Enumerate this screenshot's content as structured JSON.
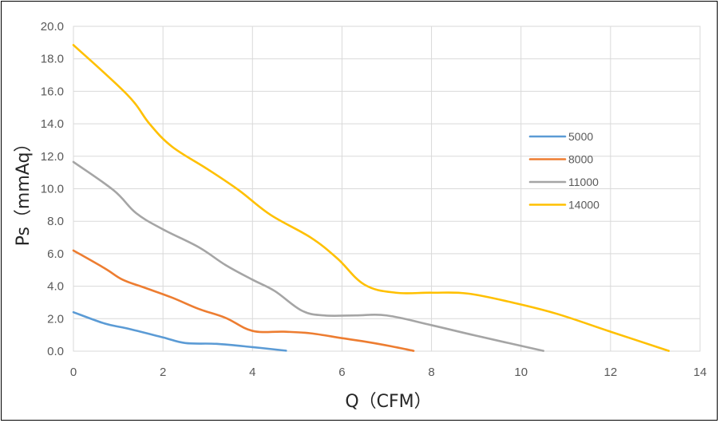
{
  "chart_data": {
    "type": "line",
    "title": "",
    "xlabel": "Q（CFM）",
    "ylabel": "Ps（mmAq）",
    "xlim": [
      0,
      14
    ],
    "ylim": [
      0,
      20
    ],
    "x_ticks": [
      "0",
      "2",
      "4",
      "6",
      "8",
      "10",
      "12",
      "14"
    ],
    "y_ticks": [
      "0.0",
      "2.0",
      "4.0",
      "6.0",
      "8.0",
      "10.0",
      "12.0",
      "14.0",
      "16.0",
      "18.0",
      "20.0"
    ],
    "grid": true,
    "legend_position": "right",
    "series": [
      {
        "name": "5000",
        "color": "#5b9bd5",
        "points": [
          [
            0,
            2.4
          ],
          [
            0.7,
            1.7
          ],
          [
            1.2,
            1.4
          ],
          [
            2,
            0.85
          ],
          [
            2.5,
            0.5
          ],
          [
            3.2,
            0.45
          ],
          [
            4,
            0.25
          ],
          [
            4.75,
            0.03
          ]
        ]
      },
      {
        "name": "8000",
        "color": "#ed7d31",
        "points": [
          [
            0,
            6.2
          ],
          [
            0.7,
            5.1
          ],
          [
            1.1,
            4.4
          ],
          [
            1.6,
            3.9
          ],
          [
            2.2,
            3.3
          ],
          [
            2.8,
            2.6
          ],
          [
            3.4,
            2.05
          ],
          [
            4,
            1.25
          ],
          [
            4.7,
            1.2
          ],
          [
            5.3,
            1.1
          ],
          [
            6,
            0.8
          ],
          [
            6.6,
            0.55
          ],
          [
            7.1,
            0.3
          ],
          [
            7.6,
            0.02
          ]
        ]
      },
      {
        "name": "11000",
        "color": "#a5a5a5",
        "points": [
          [
            0,
            11.65
          ],
          [
            0.9,
            9.9
          ],
          [
            1.4,
            8.5
          ],
          [
            2,
            7.5
          ],
          [
            2.8,
            6.4
          ],
          [
            3.4,
            5.3
          ],
          [
            4,
            4.4
          ],
          [
            4.5,
            3.7
          ],
          [
            5.1,
            2.5
          ],
          [
            5.6,
            2.2
          ],
          [
            6.3,
            2.2
          ],
          [
            7,
            2.2
          ],
          [
            8,
            1.6
          ],
          [
            9,
            0.95
          ],
          [
            10.5,
            0.02
          ]
        ]
      },
      {
        "name": "14000",
        "color": "#ffc000",
        "points": [
          [
            0,
            18.85
          ],
          [
            1.2,
            15.8
          ],
          [
            1.7,
            14.0
          ],
          [
            2.2,
            12.6
          ],
          [
            3,
            11.2
          ],
          [
            3.7,
            9.9
          ],
          [
            4.4,
            8.4
          ],
          [
            5.3,
            7.0
          ],
          [
            5.9,
            5.7
          ],
          [
            6.5,
            4.1
          ],
          [
            7.2,
            3.6
          ],
          [
            8,
            3.6
          ],
          [
            8.8,
            3.55
          ],
          [
            9.8,
            3.0
          ],
          [
            10.8,
            2.3
          ],
          [
            12,
            1.2
          ],
          [
            13.3,
            0.02
          ]
        ]
      }
    ]
  }
}
